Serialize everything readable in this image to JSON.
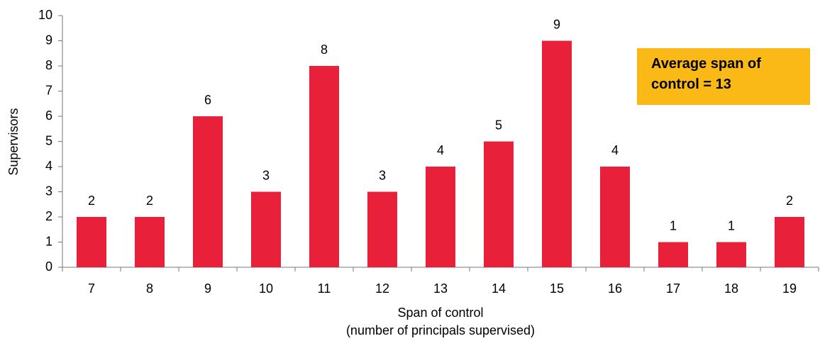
{
  "chart_data": {
    "type": "bar",
    "categories": [
      "7",
      "8",
      "9",
      "10",
      "11",
      "12",
      "13",
      "14",
      "15",
      "16",
      "17",
      "18",
      "19"
    ],
    "values": [
      2,
      2,
      6,
      3,
      8,
      3,
      4,
      5,
      9,
      4,
      1,
      1,
      2
    ],
    "color": "#e8203a",
    "ylabel": "Supervisors",
    "xlabel": [
      "Span of control",
      "(number of principals supervised)"
    ],
    "annotation": "Average span of control = 13",
    "ylim": [
      0,
      10
    ],
    "yticks": [
      0,
      1,
      2,
      3,
      4,
      5,
      6,
      7,
      8,
      9,
      10
    ],
    "grid": false
  }
}
